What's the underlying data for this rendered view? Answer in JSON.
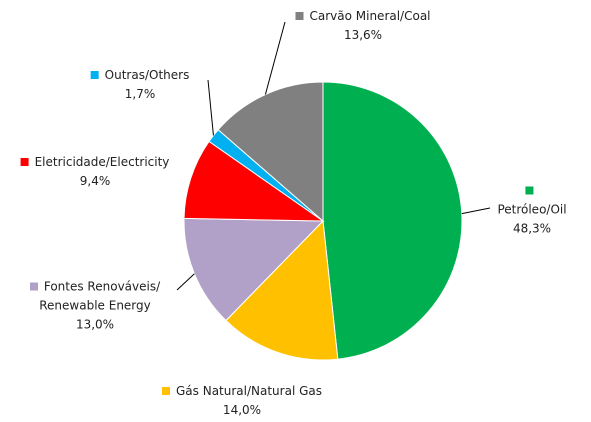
{
  "chart_data": {
    "type": "pie",
    "categories": [
      "Petróleo/Oil",
      "Gás Natural/Natural Gas",
      "Fontes Renováveis/ Renewable Energy",
      "Eletricidade/Electricity",
      "Outras/Others",
      "Carvão Mineral/Coal"
    ],
    "values": [
      48.3,
      14.0,
      13.0,
      9.4,
      1.7,
      13.6
    ],
    "value_labels": [
      "48,3%",
      "14,0%",
      "13,0%",
      "9,4%",
      "1,7%",
      "13,6%"
    ],
    "colors": [
      "#00b050",
      "#ffc000",
      "#b1a0c7",
      "#ff0000",
      "#00b0f0",
      "#808080"
    ]
  }
}
